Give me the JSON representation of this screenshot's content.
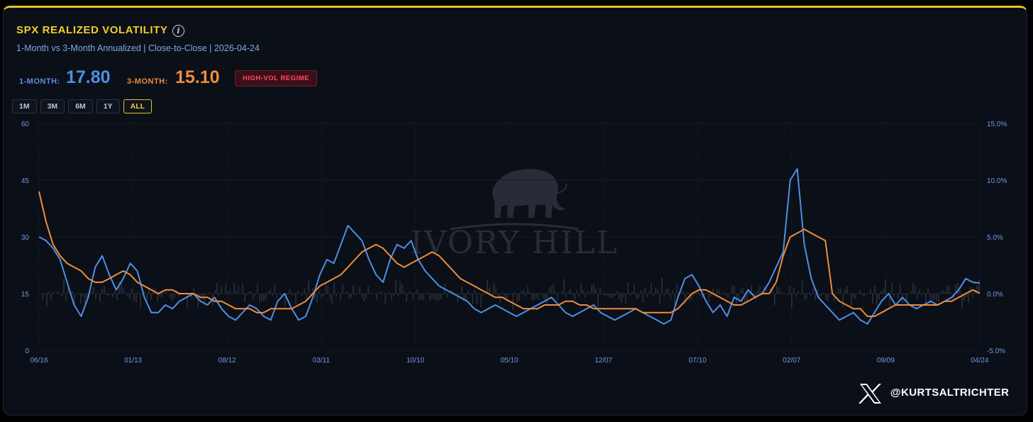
{
  "header": {
    "title": "SPX REALIZED VOLATILITY",
    "subtitle": "1-Month vs 3-Month Annualized | Close-to-Close | 2026-04-24",
    "info_icon": "info-icon"
  },
  "stats": {
    "one_month_label": "1-MONTH:",
    "one_month_value": "17.80",
    "three_month_label": "3-MONTH:",
    "three_month_value": "15.10",
    "regime_badge": "HIGH-VOL REGIME"
  },
  "ranges": {
    "items": [
      "1M",
      "3M",
      "6M",
      "1Y",
      "ALL"
    ],
    "active": "ALL"
  },
  "watermark": {
    "text": "IVORY HILL",
    "icon": "elephant-icon"
  },
  "footer": {
    "handle": "@KURTSALTRICHTER",
    "icon": "x-logo-icon"
  },
  "colors": {
    "accent": "#e8c22d",
    "one_month": "#4f8ee5",
    "three_month": "#f08c3c",
    "returns": "#6b6f76",
    "badge": "#ff4d63"
  },
  "chart_data": {
    "type": "line",
    "xlabel": "",
    "ylabel": "",
    "x_tick_labels": [
      "06/16",
      "01/13",
      "08/12",
      "03/11",
      "10/10",
      "05/10",
      "12/07",
      "07/10",
      "02/07",
      "09/09",
      "04/24"
    ],
    "ylim": [
      0,
      60
    ],
    "y_ticks": [
      0,
      15,
      30,
      45,
      60
    ],
    "y2lim": [
      -5,
      15
    ],
    "y2_ticks": [
      "-5.0%",
      "0.0%",
      "5.0%",
      "10.0%",
      "15.0%"
    ],
    "grid": true,
    "legend": "none",
    "series": [
      {
        "key": "one_month",
        "values": [
          [
            0,
            30
          ],
          [
            1,
            29
          ],
          [
            2,
            27
          ],
          [
            3,
            24
          ],
          [
            4,
            18
          ],
          [
            5,
            12
          ],
          [
            6,
            9
          ],
          [
            7,
            14
          ],
          [
            8,
            22
          ],
          [
            9,
            25
          ],
          [
            10,
            20
          ],
          [
            11,
            16
          ],
          [
            12,
            19
          ],
          [
            13,
            23
          ],
          [
            14,
            21
          ],
          [
            15,
            14
          ],
          [
            16,
            10
          ],
          [
            17,
            10
          ],
          [
            18,
            12
          ],
          [
            19,
            11
          ],
          [
            20,
            13
          ],
          [
            21,
            14
          ],
          [
            22,
            15
          ],
          [
            23,
            13
          ],
          [
            24,
            12
          ],
          [
            25,
            14
          ],
          [
            26,
            11
          ],
          [
            27,
            9
          ],
          [
            28,
            8
          ],
          [
            29,
            10
          ],
          [
            30,
            12
          ],
          [
            31,
            11
          ],
          [
            32,
            9
          ],
          [
            33,
            8
          ],
          [
            34,
            13
          ],
          [
            35,
            15
          ],
          [
            36,
            11
          ],
          [
            37,
            8
          ],
          [
            38,
            9
          ],
          [
            39,
            14
          ],
          [
            40,
            20
          ],
          [
            41,
            24
          ],
          [
            42,
            23
          ],
          [
            43,
            28
          ],
          [
            44,
            33
          ],
          [
            45,
            31
          ],
          [
            46,
            29
          ],
          [
            47,
            24
          ],
          [
            48,
            20
          ],
          [
            49,
            18
          ],
          [
            50,
            24
          ],
          [
            51,
            28
          ],
          [
            52,
            27
          ],
          [
            53,
            29
          ],
          [
            54,
            24
          ],
          [
            55,
            21
          ],
          [
            56,
            19
          ],
          [
            57,
            17
          ],
          [
            58,
            16
          ],
          [
            59,
            15
          ],
          [
            60,
            14
          ],
          [
            61,
            13
          ],
          [
            62,
            11
          ],
          [
            63,
            10
          ],
          [
            64,
            11
          ],
          [
            65,
            12
          ],
          [
            66,
            11
          ],
          [
            67,
            10
          ],
          [
            68,
            9
          ],
          [
            69,
            10
          ],
          [
            70,
            11
          ],
          [
            71,
            12
          ],
          [
            72,
            13
          ],
          [
            73,
            14
          ],
          [
            74,
            12
          ],
          [
            75,
            10
          ],
          [
            76,
            9
          ],
          [
            77,
            10
          ],
          [
            78,
            11
          ],
          [
            79,
            12
          ],
          [
            80,
            10
          ],
          [
            81,
            9
          ],
          [
            82,
            8
          ],
          [
            83,
            9
          ],
          [
            84,
            10
          ],
          [
            85,
            11
          ],
          [
            86,
            10
          ],
          [
            87,
            9
          ],
          [
            88,
            8
          ],
          [
            89,
            7
          ],
          [
            90,
            8
          ],
          [
            91,
            14
          ],
          [
            92,
            19
          ],
          [
            93,
            20
          ],
          [
            94,
            17
          ],
          [
            95,
            13
          ],
          [
            96,
            10
          ],
          [
            97,
            12
          ],
          [
            98,
            9
          ],
          [
            99,
            14
          ],
          [
            100,
            13
          ],
          [
            101,
            16
          ],
          [
            102,
            14
          ],
          [
            103,
            15
          ],
          [
            104,
            18
          ],
          [
            105,
            22
          ],
          [
            106,
            26
          ],
          [
            107,
            45
          ],
          [
            108,
            48
          ],
          [
            109,
            28
          ],
          [
            110,
            19
          ],
          [
            111,
            14
          ],
          [
            112,
            12
          ],
          [
            113,
            10
          ],
          [
            114,
            8
          ],
          [
            115,
            9
          ],
          [
            116,
            10
          ],
          [
            117,
            8
          ],
          [
            118,
            7
          ],
          [
            119,
            10
          ],
          [
            120,
            13
          ],
          [
            121,
            15
          ],
          [
            122,
            12
          ],
          [
            123,
            14
          ],
          [
            124,
            12
          ],
          [
            125,
            11
          ],
          [
            126,
            12
          ],
          [
            127,
            13
          ],
          [
            128,
            12
          ],
          [
            129,
            13
          ],
          [
            130,
            14
          ],
          [
            131,
            16
          ],
          [
            132,
            19
          ],
          [
            133,
            18
          ],
          [
            134,
            17.8
          ]
        ]
      },
      {
        "key": "three_month",
        "values": [
          [
            0,
            42
          ],
          [
            1,
            34
          ],
          [
            2,
            28
          ],
          [
            3,
            25
          ],
          [
            4,
            23
          ],
          [
            5,
            22
          ],
          [
            6,
            21
          ],
          [
            7,
            19
          ],
          [
            8,
            18
          ],
          [
            9,
            18
          ],
          [
            10,
            19
          ],
          [
            11,
            20
          ],
          [
            12,
            21
          ],
          [
            13,
            20
          ],
          [
            14,
            18
          ],
          [
            15,
            17
          ],
          [
            16,
            16
          ],
          [
            17,
            15
          ],
          [
            18,
            16
          ],
          [
            19,
            16
          ],
          [
            20,
            15
          ],
          [
            21,
            15
          ],
          [
            22,
            15
          ],
          [
            23,
            14
          ],
          [
            24,
            14
          ],
          [
            25,
            13
          ],
          [
            26,
            13
          ],
          [
            27,
            12
          ],
          [
            28,
            11
          ],
          [
            29,
            11
          ],
          [
            30,
            11
          ],
          [
            31,
            10
          ],
          [
            32,
            10
          ],
          [
            33,
            11
          ],
          [
            34,
            11
          ],
          [
            35,
            11
          ],
          [
            36,
            11
          ],
          [
            37,
            12
          ],
          [
            38,
            13
          ],
          [
            39,
            15
          ],
          [
            40,
            17
          ],
          [
            41,
            18
          ],
          [
            42,
            19
          ],
          [
            43,
            20
          ],
          [
            44,
            22
          ],
          [
            45,
            24
          ],
          [
            46,
            26
          ],
          [
            47,
            27
          ],
          [
            48,
            28
          ],
          [
            49,
            27
          ],
          [
            50,
            25
          ],
          [
            51,
            23
          ],
          [
            52,
            22
          ],
          [
            53,
            23
          ],
          [
            54,
            24
          ],
          [
            55,
            25
          ],
          [
            56,
            26
          ],
          [
            57,
            25
          ],
          [
            58,
            23
          ],
          [
            59,
            21
          ],
          [
            60,
            19
          ],
          [
            61,
            18
          ],
          [
            62,
            17
          ],
          [
            63,
            16
          ],
          [
            64,
            15
          ],
          [
            65,
            14
          ],
          [
            66,
            14
          ],
          [
            67,
            13
          ],
          [
            68,
            12
          ],
          [
            69,
            11
          ],
          [
            70,
            11
          ],
          [
            71,
            11
          ],
          [
            72,
            12
          ],
          [
            73,
            12
          ],
          [
            74,
            12
          ],
          [
            75,
            13
          ],
          [
            76,
            13
          ],
          [
            77,
            12
          ],
          [
            78,
            12
          ],
          [
            79,
            11
          ],
          [
            80,
            11
          ],
          [
            81,
            11
          ],
          [
            82,
            11
          ],
          [
            83,
            11
          ],
          [
            84,
            11
          ],
          [
            85,
            11
          ],
          [
            86,
            10
          ],
          [
            87,
            10
          ],
          [
            88,
            10
          ],
          [
            89,
            10
          ],
          [
            90,
            10
          ],
          [
            91,
            11
          ],
          [
            92,
            13
          ],
          [
            93,
            15
          ],
          [
            94,
            16
          ],
          [
            95,
            16
          ],
          [
            96,
            15
          ],
          [
            97,
            14
          ],
          [
            98,
            13
          ],
          [
            99,
            12
          ],
          [
            100,
            12
          ],
          [
            101,
            13
          ],
          [
            102,
            14
          ],
          [
            103,
            15
          ],
          [
            104,
            15
          ],
          [
            105,
            18
          ],
          [
            106,
            25
          ],
          [
            107,
            30
          ],
          [
            108,
            31
          ],
          [
            109,
            32
          ],
          [
            110,
            31
          ],
          [
            111,
            30
          ],
          [
            112,
            29
          ],
          [
            113,
            15
          ],
          [
            114,
            13
          ],
          [
            115,
            12
          ],
          [
            116,
            11
          ],
          [
            117,
            11
          ],
          [
            118,
            9
          ],
          [
            119,
            9
          ],
          [
            120,
            10
          ],
          [
            121,
            11
          ],
          [
            122,
            12
          ],
          [
            123,
            12
          ],
          [
            124,
            12
          ],
          [
            125,
            12
          ],
          [
            126,
            12
          ],
          [
            127,
            12
          ],
          [
            128,
            12
          ],
          [
            129,
            13
          ],
          [
            130,
            13
          ],
          [
            131,
            14
          ],
          [
            132,
            15
          ],
          [
            133,
            16
          ],
          [
            134,
            15.1
          ]
        ]
      }
    ]
  }
}
